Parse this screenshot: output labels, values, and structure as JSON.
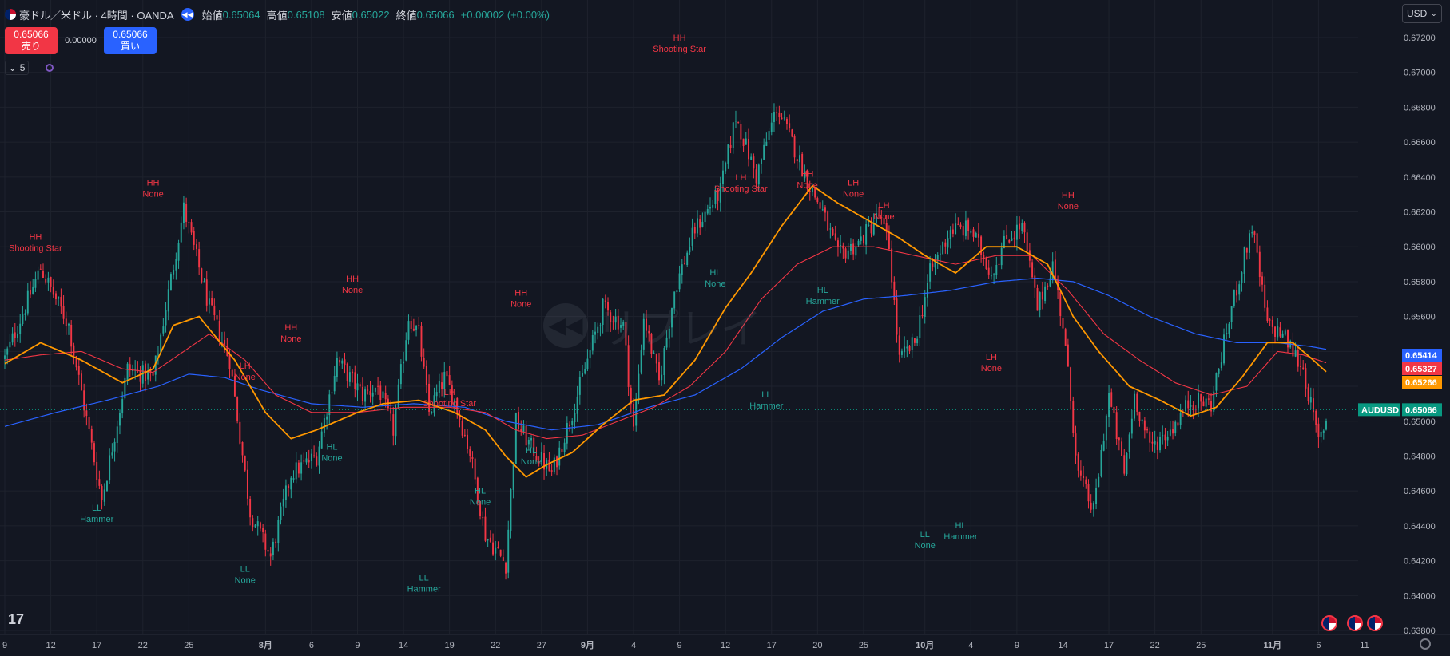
{
  "header": {
    "symbol": "豪ドル／米ドル · 4時間 · OANDA",
    "open_label": "始値",
    "open": "0.65064",
    "high_label": "高値",
    "high": "0.65108",
    "low_label": "安値",
    "low": "0.65022",
    "close_label": "終値",
    "close": "0.65066",
    "change": "+0.00002 (+0.00%)",
    "replay_icon": "rewind-icon"
  },
  "trade": {
    "sell_price": "0.65066",
    "sell_label": "売り",
    "spread": "0.00000",
    "buy_price": "0.65066",
    "buy_label": "買い"
  },
  "indicators_toggle": "5",
  "currency": "USD",
  "watermark": "リプレイ",
  "colors": {
    "background": "#131722",
    "up": "#26a69a",
    "down": "#f23645",
    "ma_fast": "#ff9800",
    "ma_mid": "#f23645",
    "ma_slow": "#2962ff",
    "grid": "#1e222d",
    "text": "#d1d4dc",
    "axis_text": "#b2b5be"
  },
  "chart_data": {
    "type": "candlestick",
    "symbol_tag": "AUDUSD",
    "y_axis": {
      "ticks": [
        "0.67200",
        "0.67000",
        "0.66800",
        "0.66600",
        "0.66400",
        "0.66200",
        "0.66000",
        "0.65800",
        "0.65600",
        "0.65400",
        "0.65200",
        "0.65000",
        "0.64800",
        "0.64600",
        "0.64400",
        "0.64200",
        "0.64000",
        "0.63800"
      ],
      "range": [
        0.6375,
        0.673
      ]
    },
    "x_axis": {
      "ticks": [
        {
          "label": "9",
          "bar": 0
        },
        {
          "label": "12",
          "bar": 18
        },
        {
          "label": "17",
          "bar": 36
        },
        {
          "label": "22",
          "bar": 54
        },
        {
          "label": "25",
          "bar": 72
        },
        {
          "label": "8月",
          "bar": 102,
          "bold": true
        },
        {
          "label": "6",
          "bar": 120
        },
        {
          "label": "9",
          "bar": 138
        },
        {
          "label": "14",
          "bar": 156
        },
        {
          "label": "19",
          "bar": 174
        },
        {
          "label": "22",
          "bar": 192
        },
        {
          "label": "27",
          "bar": 210
        },
        {
          "label": "9月",
          "bar": 228,
          "bold": true
        },
        {
          "label": "4",
          "bar": 246
        },
        {
          "label": "9",
          "bar": 264
        },
        {
          "label": "12",
          "bar": 282
        },
        {
          "label": "17",
          "bar": 300
        },
        {
          "label": "20",
          "bar": 318
        },
        {
          "label": "25",
          "bar": 336
        },
        {
          "label": "10月",
          "bar": 360,
          "bold": true
        },
        {
          "label": "4",
          "bar": 378
        },
        {
          "label": "9",
          "bar": 396
        },
        {
          "label": "14",
          "bar": 414
        },
        {
          "label": "17",
          "bar": 432
        },
        {
          "label": "22",
          "bar": 450
        },
        {
          "label": "25",
          "bar": 468
        },
        {
          "label": "11月",
          "bar": 496,
          "bold": true
        },
        {
          "label": "6",
          "bar": 514
        },
        {
          "label": "11",
          "bar": 532
        }
      ],
      "total_bars": 518
    },
    "price_keys": [
      [
        0,
        0.6536
      ],
      [
        14,
        0.6588
      ],
      [
        25,
        0.6555
      ],
      [
        38,
        0.6455
      ],
      [
        48,
        0.653
      ],
      [
        58,
        0.6525
      ],
      [
        70,
        0.6622
      ],
      [
        80,
        0.6565
      ],
      [
        88,
        0.6535
      ],
      [
        96,
        0.6448
      ],
      [
        104,
        0.6422
      ],
      [
        112,
        0.647
      ],
      [
        122,
        0.648
      ],
      [
        130,
        0.6535
      ],
      [
        140,
        0.6515
      ],
      [
        146,
        0.652
      ],
      [
        152,
        0.6495
      ],
      [
        158,
        0.656
      ],
      [
        162,
        0.655
      ],
      [
        166,
        0.6505
      ],
      [
        172,
        0.6525
      ],
      [
        176,
        0.6512
      ],
      [
        182,
        0.6482
      ],
      [
        188,
        0.6435
      ],
      [
        196,
        0.6418
      ],
      [
        200,
        0.65
      ],
      [
        206,
        0.6485
      ],
      [
        214,
        0.647
      ],
      [
        222,
        0.6505
      ],
      [
        234,
        0.6565
      ],
      [
        242,
        0.6555
      ],
      [
        246,
        0.6495
      ],
      [
        250,
        0.656
      ],
      [
        256,
        0.6522
      ],
      [
        262,
        0.6575
      ],
      [
        270,
        0.661
      ],
      [
        280,
        0.6632
      ],
      [
        286,
        0.6675
      ],
      [
        294,
        0.664
      ],
      [
        302,
        0.668
      ],
      [
        308,
        0.666
      ],
      [
        314,
        0.6638
      ],
      [
        320,
        0.662
      ],
      [
        326,
        0.6595
      ],
      [
        334,
        0.6602
      ],
      [
        342,
        0.6618
      ],
      [
        346,
        0.66
      ],
      [
        350,
        0.6535
      ],
      [
        356,
        0.6545
      ],
      [
        362,
        0.6585
      ],
      [
        370,
        0.661
      ],
      [
        378,
        0.661
      ],
      [
        386,
        0.6585
      ],
      [
        392,
        0.6605
      ],
      [
        398,
        0.6612
      ],
      [
        404,
        0.6565
      ],
      [
        410,
        0.659
      ],
      [
        414,
        0.6555
      ],
      [
        420,
        0.647
      ],
      [
        426,
        0.6448
      ],
      [
        432,
        0.6515
      ],
      [
        438,
        0.647
      ],
      [
        442,
        0.6515
      ],
      [
        448,
        0.6485
      ],
      [
        456,
        0.6495
      ],
      [
        464,
        0.6512
      ],
      [
        472,
        0.651
      ],
      [
        480,
        0.6565
      ],
      [
        488,
        0.6612
      ],
      [
        494,
        0.6555
      ],
      [
        500,
        0.655
      ],
      [
        508,
        0.653
      ],
      [
        514,
        0.6488
      ],
      [
        518,
        0.6506
      ]
    ],
    "ma_fast": [
      [
        0,
        0.6533
      ],
      [
        14,
        0.6545
      ],
      [
        30,
        0.6535
      ],
      [
        46,
        0.6522
      ],
      [
        58,
        0.653
      ],
      [
        66,
        0.6555
      ],
      [
        76,
        0.656
      ],
      [
        90,
        0.6535
      ],
      [
        102,
        0.6505
      ],
      [
        112,
        0.649
      ],
      [
        122,
        0.6495
      ],
      [
        138,
        0.6505
      ],
      [
        148,
        0.651
      ],
      [
        162,
        0.6512
      ],
      [
        176,
        0.6505
      ],
      [
        188,
        0.6495
      ],
      [
        196,
        0.648
      ],
      [
        204,
        0.6468
      ],
      [
        212,
        0.6475
      ],
      [
        222,
        0.6482
      ],
      [
        234,
        0.6498
      ],
      [
        246,
        0.6512
      ],
      [
        258,
        0.6515
      ],
      [
        270,
        0.6535
      ],
      [
        282,
        0.6565
      ],
      [
        292,
        0.6585
      ],
      [
        304,
        0.6612
      ],
      [
        316,
        0.6635
      ],
      [
        326,
        0.6625
      ],
      [
        338,
        0.6615
      ],
      [
        350,
        0.6605
      ],
      [
        360,
        0.6595
      ],
      [
        372,
        0.6585
      ],
      [
        384,
        0.66
      ],
      [
        396,
        0.66
      ],
      [
        408,
        0.659
      ],
      [
        418,
        0.656
      ],
      [
        428,
        0.654
      ],
      [
        440,
        0.652
      ],
      [
        452,
        0.6512
      ],
      [
        464,
        0.6503
      ],
      [
        474,
        0.6508
      ],
      [
        484,
        0.6525
      ],
      [
        494,
        0.6545
      ],
      [
        504,
        0.6545
      ],
      [
        512,
        0.6535
      ],
      [
        518,
        0.6527
      ]
    ],
    "ma_mid": [
      [
        0,
        0.6535
      ],
      [
        14,
        0.6538
      ],
      [
        30,
        0.654
      ],
      [
        46,
        0.653
      ],
      [
        58,
        0.6528
      ],
      [
        70,
        0.654
      ],
      [
        80,
        0.655
      ],
      [
        94,
        0.6535
      ],
      [
        106,
        0.6515
      ],
      [
        120,
        0.6505
      ],
      [
        138,
        0.6505
      ],
      [
        156,
        0.6508
      ],
      [
        174,
        0.6508
      ],
      [
        188,
        0.6505
      ],
      [
        200,
        0.6495
      ],
      [
        212,
        0.649
      ],
      [
        226,
        0.6492
      ],
      [
        240,
        0.65
      ],
      [
        254,
        0.6508
      ],
      [
        268,
        0.652
      ],
      [
        282,
        0.654
      ],
      [
        296,
        0.657
      ],
      [
        310,
        0.659
      ],
      [
        324,
        0.66
      ],
      [
        340,
        0.66
      ],
      [
        356,
        0.6595
      ],
      [
        372,
        0.659
      ],
      [
        388,
        0.6595
      ],
      [
        402,
        0.6595
      ],
      [
        416,
        0.6575
      ],
      [
        430,
        0.655
      ],
      [
        444,
        0.6535
      ],
      [
        458,
        0.6522
      ],
      [
        472,
        0.6515
      ],
      [
        486,
        0.652
      ],
      [
        498,
        0.654
      ],
      [
        508,
        0.6538
      ],
      [
        518,
        0.6533
      ]
    ],
    "ma_slow": [
      [
        0,
        0.6497
      ],
      [
        20,
        0.6505
      ],
      [
        40,
        0.6512
      ],
      [
        60,
        0.652
      ],
      [
        72,
        0.6527
      ],
      [
        86,
        0.6525
      ],
      [
        100,
        0.6518
      ],
      [
        120,
        0.651
      ],
      [
        140,
        0.6508
      ],
      [
        160,
        0.651
      ],
      [
        180,
        0.6508
      ],
      [
        196,
        0.65
      ],
      [
        214,
        0.6495
      ],
      [
        232,
        0.6498
      ],
      [
        252,
        0.6508
      ],
      [
        270,
        0.6515
      ],
      [
        288,
        0.653
      ],
      [
        304,
        0.6548
      ],
      [
        320,
        0.6563
      ],
      [
        336,
        0.657
      ],
      [
        352,
        0.6572
      ],
      [
        370,
        0.6575
      ],
      [
        388,
        0.658
      ],
      [
        404,
        0.6582
      ],
      [
        418,
        0.658
      ],
      [
        432,
        0.6572
      ],
      [
        448,
        0.656
      ],
      [
        466,
        0.655
      ],
      [
        482,
        0.6545
      ],
      [
        498,
        0.6545
      ],
      [
        510,
        0.6543
      ],
      [
        518,
        0.6541
      ]
    ],
    "price_labels": [
      {
        "value": "0.65414",
        "color": "#2962ff"
      },
      {
        "value": "0.65327",
        "color": "#f23645"
      },
      {
        "value": "0.65266",
        "color": "#ff9800"
      },
      {
        "value": "0.65066",
        "color": "#089981",
        "tag": "AUDUSD"
      }
    ],
    "annotations": [
      {
        "bar": 12,
        "l1": "HH",
        "l2": "Shooting Star",
        "price": 0.6594,
        "pos": "above",
        "color": "#f23645"
      },
      {
        "bar": 36,
        "l1": "LL",
        "l2": "Hammer",
        "price": 0.6455,
        "pos": "below",
        "color": "#26a69a"
      },
      {
        "bar": 58,
        "l1": "HH",
        "l2": "None",
        "price": 0.6625,
        "pos": "above",
        "color": "#f23645"
      },
      {
        "bar": 94,
        "l1": "LH",
        "l2": "None",
        "price": 0.652,
        "pos": "above",
        "color": "#f23645"
      },
      {
        "bar": 94,
        "l1": "LL",
        "l2": "None",
        "price": 0.642,
        "pos": "below",
        "color": "#26a69a"
      },
      {
        "bar": 112,
        "l1": "HH",
        "l2": "None",
        "price": 0.6542,
        "pos": "above",
        "color": "#f23645"
      },
      {
        "bar": 128,
        "l1": "HL",
        "l2": "None",
        "price": 0.649,
        "pos": "below",
        "color": "#26a69a"
      },
      {
        "bar": 136,
        "l1": "HH",
        "l2": "None",
        "price": 0.657,
        "pos": "above",
        "color": "#f23645"
      },
      {
        "bar": 164,
        "l1": "LL",
        "l2": "Hammer",
        "price": 0.6415,
        "pos": "below",
        "color": "#26a69a"
      },
      {
        "bar": 174,
        "l1": "LH",
        "l2": "Shooting Star",
        "price": 0.6505,
        "pos": "above",
        "color": "#f23645"
      },
      {
        "bar": 186,
        "l1": "HL",
        "l2": "None",
        "price": 0.6465,
        "pos": "below",
        "color": "#26a69a"
      },
      {
        "bar": 202,
        "l1": "HH",
        "l2": "None",
        "price": 0.6562,
        "pos": "above",
        "color": "#f23645"
      },
      {
        "bar": 206,
        "l1": "HL",
        "l2": "None",
        "price": 0.6488,
        "pos": "below",
        "color": "#26a69a"
      },
      {
        "bar": 264,
        "l1": "HH",
        "l2": "Shooting Star",
        "price": 0.6708,
        "pos": "above",
        "color": "#f23645"
      },
      {
        "bar": 278,
        "l1": "HL",
        "l2": "None",
        "price": 0.659,
        "pos": "below",
        "color": "#26a69a"
      },
      {
        "bar": 288,
        "l1": "LH",
        "l2": "Shooting Star",
        "price": 0.6628,
        "pos": "above",
        "color": "#f23645"
      },
      {
        "bar": 298,
        "l1": "LL",
        "l2": "Hammer",
        "price": 0.652,
        "pos": "below",
        "color": "#26a69a"
      },
      {
        "bar": 314,
        "l1": "HH",
        "l2": "None",
        "price": 0.663,
        "pos": "above",
        "color": "#f23645"
      },
      {
        "bar": 320,
        "l1": "HL",
        "l2": "Hammer",
        "price": 0.658,
        "pos": "below",
        "color": "#26a69a"
      },
      {
        "bar": 332,
        "l1": "LH",
        "l2": "None",
        "price": 0.6625,
        "pos": "above",
        "color": "#f23645"
      },
      {
        "bar": 344,
        "l1": "LH",
        "l2": "None",
        "price": 0.6612,
        "pos": "above",
        "color": "#f23645"
      },
      {
        "bar": 360,
        "l1": "LL",
        "l2": "None",
        "price": 0.644,
        "pos": "below",
        "color": "#26a69a"
      },
      {
        "bar": 374,
        "l1": "HL",
        "l2": "Hammer",
        "price": 0.6445,
        "pos": "below",
        "color": "#26a69a"
      },
      {
        "bar": 386,
        "l1": "LH",
        "l2": "None",
        "price": 0.6525,
        "pos": "above",
        "color": "#f23645"
      },
      {
        "bar": 416,
        "l1": "HH",
        "l2": "None",
        "price": 0.6618,
        "pos": "above",
        "color": "#f23645"
      }
    ]
  }
}
